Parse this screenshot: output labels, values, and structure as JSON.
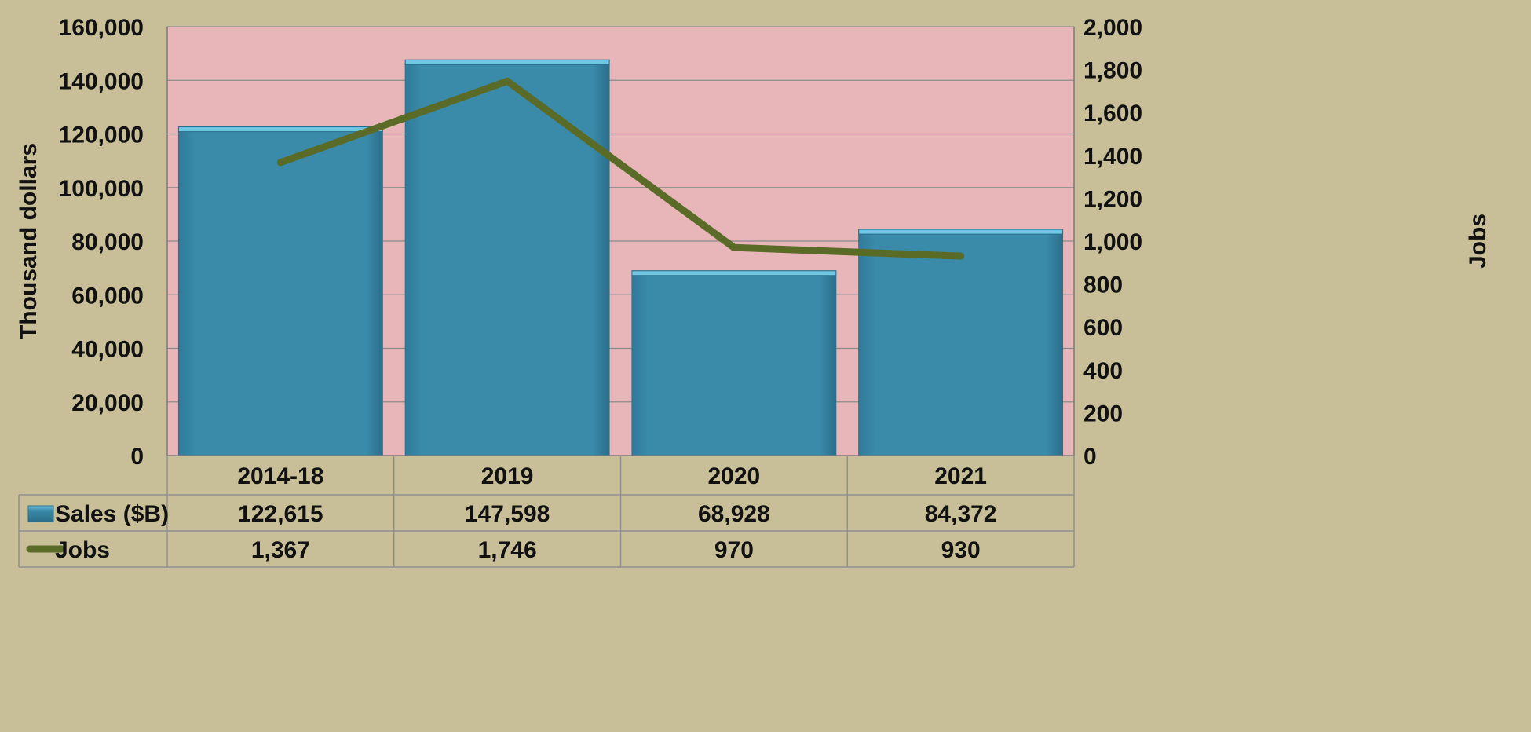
{
  "colors": {
    "background": "#c8bf98",
    "plot_area": "#e8b6b8",
    "bar_fill": "#3a8aa9",
    "bar_top": "#6fc7e4",
    "line": "#5a6b28"
  },
  "chart_data": {
    "type": "bar",
    "categories": [
      "2014-18",
      "2019",
      "2020",
      "2021"
    ],
    "series": [
      {
        "name": "Sales  ($B)",
        "type": "bar",
        "axis": "left",
        "values": [
          122615,
          147598,
          68928,
          84372
        ],
        "labels": [
          "122,615",
          "147,598",
          "68,928",
          "84,372"
        ]
      },
      {
        "name": "Jobs",
        "type": "line",
        "axis": "right",
        "values": [
          1367,
          1746,
          970,
          930
        ],
        "labels": [
          "1,367",
          "1,746",
          "970",
          "930"
        ]
      }
    ],
    "ylabel": "Thousand dollars",
    "y2label": "Jobs",
    "ylim": [
      0,
      160000
    ],
    "y2lim": [
      0,
      2000
    ],
    "yticks": [
      "0",
      "20,000",
      "40,000",
      "60,000",
      "80,000",
      "100,000",
      "120,000",
      "140,000",
      "160,000"
    ],
    "y2ticks": [
      "0",
      "200",
      "400",
      "600",
      "800",
      "1,000",
      "1,200",
      "1,400",
      "1,600",
      "1,800",
      "2,000"
    ],
    "grid": true,
    "legend": "data-table"
  }
}
